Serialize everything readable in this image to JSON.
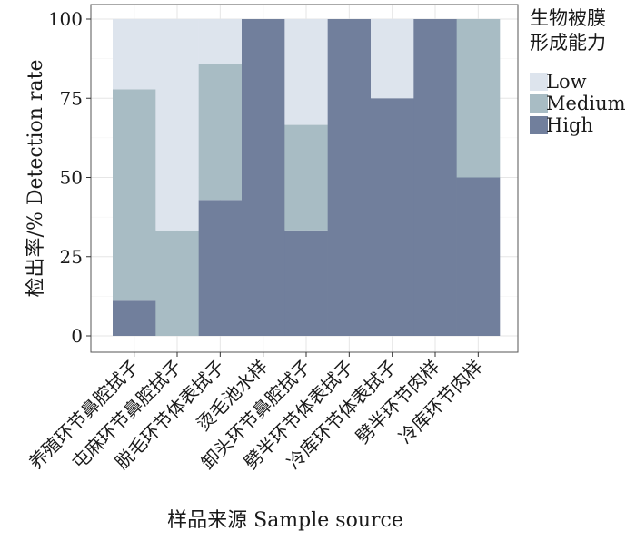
{
  "chart_data": {
    "type": "bar",
    "stacked": true,
    "normalized_percent": true,
    "categories": [
      "养殖环节鼻腔拭子",
      "屯麻环节鼻腔拭子",
      "脱毛环节体表拭子",
      "烫毛池水样",
      "卸头环节鼻腔拭子",
      "劈半环节体表拭子",
      "冷库环节体表拭子",
      "劈半环节肉样",
      "冷库环节肉样"
    ],
    "series": [
      {
        "name": "High",
        "color": "#717f9c",
        "values": [
          11.1,
          0,
          42.9,
          100,
          33.3,
          100,
          75,
          100,
          50
        ]
      },
      {
        "name": "Medium",
        "color": "#a8bcc4",
        "values": [
          66.7,
          33.3,
          42.9,
          0,
          33.3,
          0,
          0,
          0,
          50
        ]
      },
      {
        "name": "Low",
        "color": "#dde4ed",
        "values": [
          22.2,
          66.7,
          14.2,
          0,
          33.4,
          0,
          25,
          0,
          0
        ]
      }
    ],
    "ylim": [
      0,
      100
    ],
    "yticks": [
      0,
      25,
      50,
      75,
      100
    ],
    "ylabel": "检出率/% Detection rate",
    "xlabel": "样品来源 Sample source",
    "legend": {
      "title_lines": [
        "生物被膜",
        "形成能力"
      ],
      "order": [
        "Low",
        "Medium",
        "High"
      ],
      "position": "right"
    },
    "grid": true
  }
}
